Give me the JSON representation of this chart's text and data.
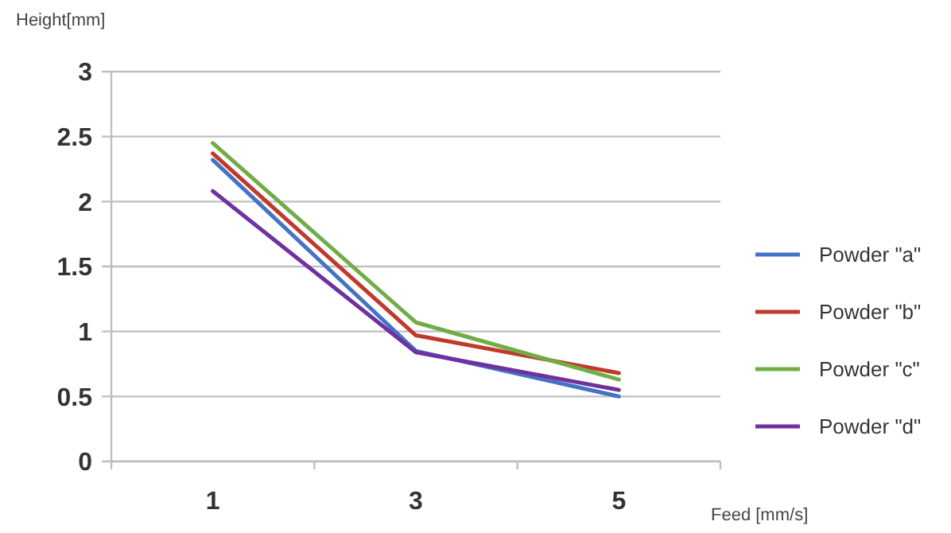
{
  "chart_data": {
    "type": "line",
    "ylabel": "Height[mm]",
    "xlabel": "Feed [mm/s]",
    "categories": [
      "1",
      "3",
      "5"
    ],
    "ylim": [
      0,
      3
    ],
    "yticks": [
      0,
      0.5,
      1,
      1.5,
      2,
      2.5,
      3
    ],
    "grid": "y",
    "legend": "right",
    "series": [
      {
        "name": "Powder \"a\"",
        "color": "#4472c4",
        "values": [
          2.32,
          0.85,
          0.5
        ]
      },
      {
        "name": "Powder \"b\"",
        "color": "#c0392b",
        "values": [
          2.37,
          0.97,
          0.68
        ]
      },
      {
        "name": "Powder \"c\"",
        "color": "#70ad47",
        "values": [
          2.45,
          1.07,
          0.63
        ]
      },
      {
        "name": "Powder \"d\"",
        "color": "#7030a0",
        "values": [
          2.08,
          0.84,
          0.55
        ]
      }
    ]
  }
}
